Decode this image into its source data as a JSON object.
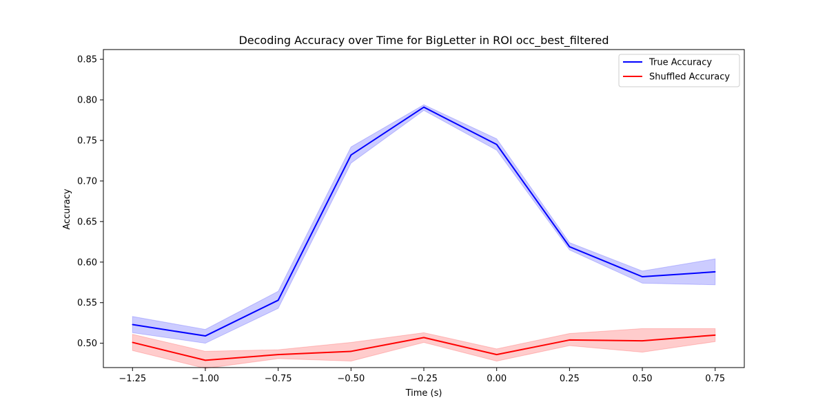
{
  "chart_data": {
    "type": "line",
    "title": "Decoding Accuracy over Time for BigLetter in ROI occ_best_filtered",
    "xlabel": "Time (s)",
    "ylabel": "Accuracy",
    "xlim": [
      -1.35,
      0.85
    ],
    "ylim": [
      0.47,
      0.862
    ],
    "x_ticks": [
      -1.25,
      -1.0,
      -0.75,
      -0.5,
      -0.25,
      0.0,
      0.25,
      0.5,
      0.75
    ],
    "x_tick_labels": [
      "−1.25",
      "−1.00",
      "−0.75",
      "−0.50",
      "−0.25",
      "0.00",
      "0.25",
      "0.50",
      "0.75"
    ],
    "y_ticks": [
      0.5,
      0.55,
      0.6,
      0.65,
      0.7,
      0.75,
      0.8,
      0.85
    ],
    "y_tick_labels": [
      "0.50",
      "0.55",
      "0.60",
      "0.65",
      "0.70",
      "0.75",
      "0.80",
      "0.85"
    ],
    "grid": false,
    "legend_position": "top-right",
    "x": [
      -1.25,
      -1.0,
      -0.75,
      -0.5,
      -0.25,
      0.0,
      0.25,
      0.5,
      0.75
    ],
    "series": [
      {
        "name": "True Accuracy",
        "color": "#0000ff",
        "fill_color": "#0000ff",
        "values": [
          0.523,
          0.509,
          0.553,
          0.732,
          0.791,
          0.745,
          0.619,
          0.582,
          0.588
        ],
        "lower": [
          0.513,
          0.5,
          0.543,
          0.722,
          0.787,
          0.738,
          0.615,
          0.574,
          0.572
        ],
        "upper": [
          0.533,
          0.517,
          0.564,
          0.742,
          0.794,
          0.752,
          0.624,
          0.589,
          0.604
        ]
      },
      {
        "name": "Shuffled Accuracy",
        "color": "#ff0000",
        "fill_color": "#ff0000",
        "values": [
          0.501,
          0.479,
          0.486,
          0.49,
          0.507,
          0.486,
          0.504,
          0.503,
          0.51
        ],
        "lower": [
          0.491,
          0.469,
          0.481,
          0.478,
          0.501,
          0.478,
          0.497,
          0.489,
          0.502
        ],
        "upper": [
          0.511,
          0.49,
          0.492,
          0.501,
          0.513,
          0.493,
          0.512,
          0.518,
          0.518
        ]
      }
    ]
  }
}
